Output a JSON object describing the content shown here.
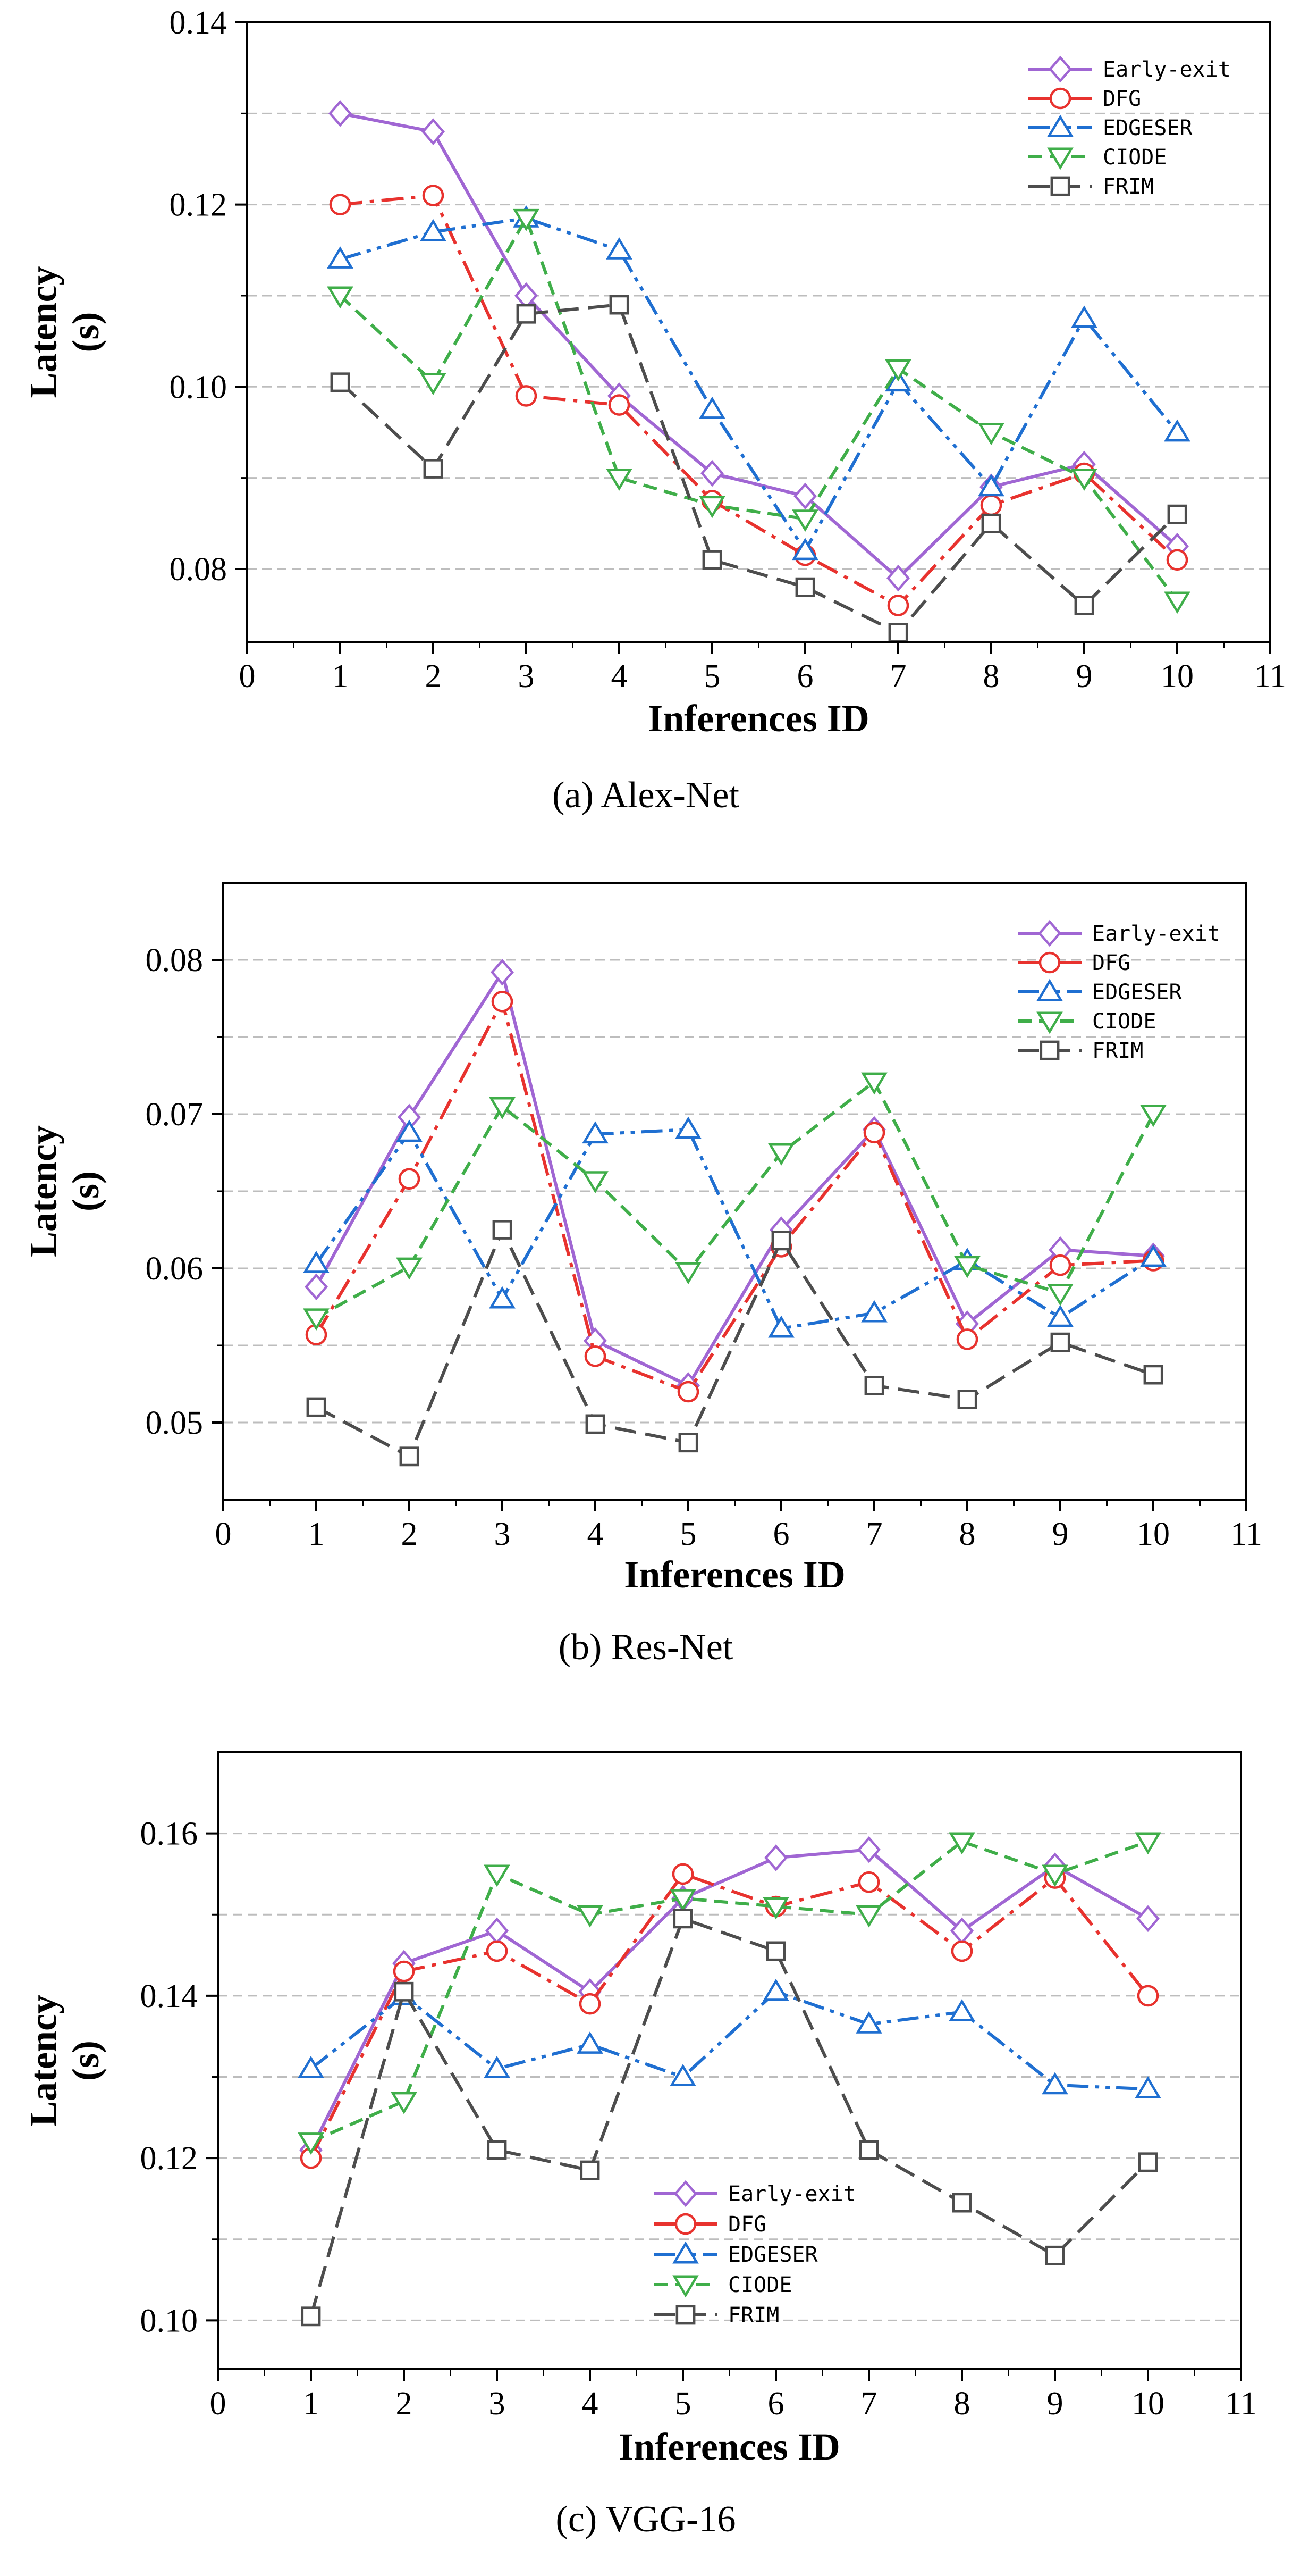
{
  "colors": {
    "Early-exit": "#a066d3",
    "DFG": "#e8322e",
    "EDGESER": "#1f6fd1",
    "CIODE": "#3fae49",
    "FRIM": "#4d4d4d",
    "grid": "#bdbdbd",
    "axis": "#000000"
  },
  "chart_data": [
    {
      "type": "line",
      "caption": "(a) Alex-Net",
      "xlabel": "Inferences ID",
      "ylabel_line1": "Latency",
      "ylabel_line2": "(s)",
      "xlim": [
        0,
        11
      ],
      "ylim": [
        0.072,
        0.14
      ],
      "x_ticks": [
        0,
        1,
        2,
        3,
        4,
        5,
        6,
        7,
        8,
        9,
        10,
        11
      ],
      "y_ticks": [
        0.08,
        0.1,
        0.12,
        0.14
      ],
      "y_tick_labels": [
        "0.08",
        "0.10",
        "0.12",
        "0.14"
      ],
      "y_minor_ticks": [
        0.09,
        0.11,
        0.13
      ],
      "y_grid": [
        0.08,
        0.09,
        0.1,
        0.11,
        0.12,
        0.13
      ],
      "legend_position": "top-right",
      "x": [
        1,
        2,
        3,
        4,
        5,
        6,
        7,
        8,
        9,
        10
      ],
      "series": [
        {
          "name": "Early-exit",
          "marker": "diamond",
          "dash": "solid",
          "values": [
            0.13,
            0.128,
            0.11,
            0.099,
            0.0905,
            0.088,
            0.079,
            0.089,
            0.0915,
            0.0825
          ]
        },
        {
          "name": "DFG",
          "marker": "circle",
          "dash": "dashdot",
          "values": [
            0.12,
            0.121,
            0.099,
            0.098,
            0.0875,
            0.0815,
            0.076,
            0.087,
            0.0905,
            0.081
          ]
        },
        {
          "name": "EDGESER",
          "marker": "triangle-up",
          "dash": "dashdotdot",
          "values": [
            0.114,
            0.117,
            0.1185,
            0.115,
            0.0975,
            0.082,
            0.1005,
            0.089,
            0.1075,
            0.095
          ]
        },
        {
          "name": "CIODE",
          "marker": "triangle-down",
          "dash": "dash",
          "values": [
            0.11,
            0.1005,
            0.1185,
            0.09,
            0.087,
            0.0855,
            0.102,
            0.095,
            0.09,
            0.0765
          ]
        },
        {
          "name": "FRIM",
          "marker": "square",
          "dash": "longdash",
          "values": [
            0.1005,
            0.091,
            0.108,
            0.109,
            0.081,
            0.078,
            0.073,
            0.085,
            0.076,
            0.086
          ]
        }
      ]
    },
    {
      "type": "line",
      "caption": "(b) Res-Net",
      "xlabel": "Inferences ID",
      "ylabel_line1": "Latency",
      "ylabel_line2": "(s)",
      "xlim": [
        0,
        11
      ],
      "ylim": [
        0.045,
        0.085
      ],
      "x_ticks": [
        0,
        1,
        2,
        3,
        4,
        5,
        6,
        7,
        8,
        9,
        10,
        11
      ],
      "y_ticks": [
        0.05,
        0.06,
        0.07,
        0.08
      ],
      "y_tick_labels": [
        "0.05",
        "0.06",
        "0.07",
        "0.08"
      ],
      "y_minor_ticks": [
        0.055,
        0.065,
        0.075
      ],
      "y_grid": [
        0.05,
        0.055,
        0.06,
        0.065,
        0.07,
        0.075,
        0.08
      ],
      "legend_position": "top-right",
      "x": [
        1,
        2,
        3,
        4,
        5,
        6,
        7,
        8,
        9,
        10
      ],
      "series": [
        {
          "name": "Early-exit",
          "marker": "diamond",
          "dash": "solid",
          "values": [
            0.0588,
            0.0698,
            0.0792,
            0.0553,
            0.0524,
            0.0625,
            0.069,
            0.0564,
            0.0612,
            0.0608
          ]
        },
        {
          "name": "DFG",
          "marker": "circle",
          "dash": "dashdot",
          "values": [
            0.0557,
            0.0658,
            0.0773,
            0.0543,
            0.052,
            0.0614,
            0.0688,
            0.0554,
            0.0602,
            0.0605
          ]
        },
        {
          "name": "EDGESER",
          "marker": "triangle-up",
          "dash": "dashdotdot",
          "values": [
            0.0603,
            0.0688,
            0.058,
            0.0687,
            0.069,
            0.0561,
            0.0571,
            0.0605,
            0.0568,
            0.0607
          ]
        },
        {
          "name": "CIODE",
          "marker": "triangle-down",
          "dash": "dash",
          "values": [
            0.0568,
            0.0601,
            0.0705,
            0.0657,
            0.0598,
            0.0675,
            0.0721,
            0.0602,
            0.0584,
            0.07
          ]
        },
        {
          "name": "FRIM",
          "marker": "square",
          "dash": "longdash",
          "values": [
            0.051,
            0.0478,
            0.0625,
            0.0499,
            0.0487,
            0.0618,
            0.0524,
            0.0515,
            0.0552,
            0.0531
          ]
        }
      ]
    },
    {
      "type": "line",
      "caption": "(c) VGG-16",
      "xlabel": "Inferences ID",
      "ylabel_line1": "Latency",
      "ylabel_line2": "(s)",
      "xlim": [
        0,
        11
      ],
      "ylim": [
        0.094,
        0.17
      ],
      "x_ticks": [
        0,
        1,
        2,
        3,
        4,
        5,
        6,
        7,
        8,
        9,
        10,
        11
      ],
      "y_ticks": [
        0.1,
        0.12,
        0.14,
        0.16
      ],
      "y_tick_labels": [
        "0.10",
        "0.12",
        "0.14",
        "0.16"
      ],
      "y_minor_ticks": [
        0.11,
        0.13,
        0.15
      ],
      "y_grid": [
        0.1,
        0.11,
        0.12,
        0.13,
        0.14,
        0.15,
        0.16
      ],
      "legend_position": "bottom-center",
      "x": [
        1,
        2,
        3,
        4,
        5,
        6,
        7,
        8,
        9,
        10
      ],
      "series": [
        {
          "name": "Early-exit",
          "marker": "diamond",
          "dash": "solid",
          "values": [
            0.121,
            0.144,
            0.148,
            0.1405,
            0.152,
            0.157,
            0.158,
            0.148,
            0.156,
            0.1495
          ]
        },
        {
          "name": "DFG",
          "marker": "circle",
          "dash": "dashdot",
          "values": [
            0.12,
            0.143,
            0.1455,
            0.139,
            0.155,
            0.151,
            0.154,
            0.1455,
            0.1545,
            0.14
          ]
        },
        {
          "name": "EDGESER",
          "marker": "triangle-up",
          "dash": "dashdotdot",
          "values": [
            0.131,
            0.14,
            0.131,
            0.134,
            0.13,
            0.1405,
            0.1365,
            0.138,
            0.129,
            0.1285
          ]
        },
        {
          "name": "CIODE",
          "marker": "triangle-down",
          "dash": "dash",
          "values": [
            0.122,
            0.127,
            0.155,
            0.15,
            0.152,
            0.151,
            0.15,
            0.159,
            0.155,
            0.159
          ]
        },
        {
          "name": "FRIM",
          "marker": "square",
          "dash": "longdash",
          "values": [
            0.1005,
            0.1405,
            0.121,
            0.1185,
            0.1495,
            0.1455,
            0.121,
            0.1145,
            0.108,
            0.1195
          ]
        }
      ]
    }
  ]
}
